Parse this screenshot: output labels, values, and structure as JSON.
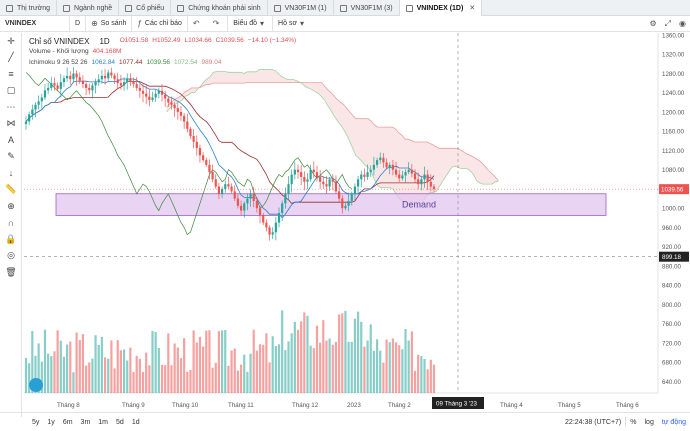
{
  "tabs": [
    {
      "label": "Thị trường",
      "active": false
    },
    {
      "label": "Ngành nghề",
      "active": false
    },
    {
      "label": "Cổ phiếu",
      "active": false
    },
    {
      "label": "Chứng khoán phái sinh",
      "active": false
    },
    {
      "label": "VN30F1M (1)",
      "active": false
    },
    {
      "label": "VN30F1M (3)",
      "active": false
    },
    {
      "label": "VNINDEX (1D)",
      "active": true
    }
  ],
  "toolbar": {
    "symbol": "VNINDEX",
    "interval": "D",
    "compare": "So sánh",
    "indicators": "Các chỉ báo",
    "chart_type": "Biểu đồ",
    "template": "Hồ sơ"
  },
  "legend": {
    "title": "Chỉ số VNINDEX",
    "interval": "1D",
    "ohlc": {
      "o": "O1051.58",
      "h": "H1052.49",
      "l": "L1034.66",
      "c": "C1039.56",
      "chg": "−14.10 (−1.34%)"
    },
    "volume_label": "Volume - Khối lượng",
    "volume_value": "404.168M",
    "ichimoku_label": "Ichimoku 9 26 52 26",
    "ichimoku_values": [
      "1062.84",
      "1077.44",
      "1039.56",
      "1072.54",
      "989.04"
    ],
    "ichimoku_colors": [
      "#2a7fd0",
      "#9b2f2f",
      "#3a8a3a",
      "#7fbf7f",
      "#d08080"
    ]
  },
  "colors": {
    "up": "#26a69a",
    "down": "#ef5350",
    "accent": "#2962ff",
    "demand_fill": "#e3c6ef",
    "demand_border": "#a05cc0"
  },
  "chart_data": {
    "type": "candlestick",
    "ylim": [
      620,
      1360
    ],
    "ticks": [
      640,
      680,
      720,
      760,
      800,
      840,
      880,
      920,
      960,
      1000,
      1040,
      1080,
      1120,
      1160,
      1200,
      1240,
      1280,
      1320,
      1360
    ],
    "x_labels": [
      "Tháng 8",
      "Tháng 9",
      "Tháng 10",
      "Tháng 11",
      "Tháng 12",
      "2023",
      "Tháng 2",
      "Tháng 3",
      "Tháng 4",
      "Tháng 5",
      "Tháng 6"
    ],
    "last_price_label": "1039.56",
    "crosshair_price_label": "899.18",
    "crosshair_date_label": "09 Tháng 3 '23",
    "zone_label": "Demand",
    "zone_range": [
      985,
      1030
    ],
    "series_closes": [
      1180,
      1195,
      1205,
      1215,
      1222,
      1230,
      1245,
      1250,
      1260,
      1255,
      1248,
      1262,
      1270,
      1275,
      1268,
      1280,
      1272,
      1265,
      1258,
      1250,
      1245,
      1255,
      1262,
      1268,
      1275,
      1270,
      1282,
      1276,
      1268,
      1260,
      1255,
      1262,
      1270,
      1264,
      1258,
      1250,
      1244,
      1238,
      1232,
      1225,
      1230,
      1238,
      1244,
      1236,
      1228,
      1220,
      1215,
      1208,
      1200,
      1192,
      1180,
      1165,
      1150,
      1138,
      1125,
      1110,
      1100,
      1090,
      1075,
      1060,
      1045,
      1030,
      1040,
      1050,
      1045,
      1035,
      1020,
      1005,
      995,
      1010,
      1020,
      1030,
      1015,
      1000,
      985,
      970,
      960,
      945,
      950,
      970,
      990,
      1010,
      1030,
      1050,
      1070,
      1080,
      1075,
      1065,
      1055,
      1060,
      1080,
      1075,
      1065,
      1055,
      1050,
      1045,
      1060,
      1055,
      1035,
      1020,
      1000,
      1005,
      1015,
      1030,
      1045,
      1060,
      1070,
      1065,
      1075,
      1080,
      1090,
      1100,
      1105,
      1095,
      1085,
      1090,
      1080,
      1070,
      1062,
      1068,
      1075,
      1080,
      1072,
      1060,
      1050,
      1060,
      1070,
      1055,
      1045,
      1040
    ]
  },
  "bottom": {
    "ranges": [
      "5y",
      "1y",
      "6m",
      "3m",
      "1m",
      "5d",
      "1d"
    ],
    "clock": "22:24:38 (UTC+7)",
    "pct": "%",
    "log": "log",
    "auto": "tự động"
  }
}
